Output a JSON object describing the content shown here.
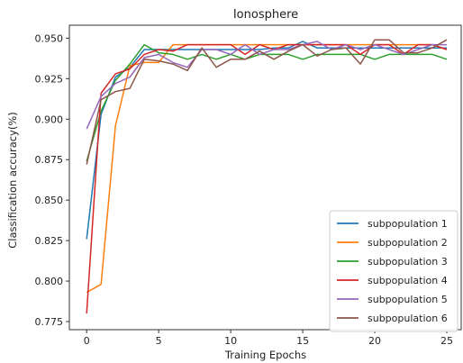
{
  "chart_data": {
    "type": "line",
    "title": "Ionosphere",
    "xlabel": "Training Epochs",
    "ylabel": "Classification accuracy(%)",
    "xlim": [
      -1.2,
      26.0
    ],
    "ylim": [
      0.77,
      0.958
    ],
    "xticks": [
      0,
      5,
      10,
      15,
      20,
      25
    ],
    "yticks": [
      0.775,
      0.8,
      0.825,
      0.85,
      0.875,
      0.9,
      0.925,
      0.95
    ],
    "ytick_labels": [
      "0.775",
      "0.800",
      "0.825",
      "0.850",
      "0.875",
      "0.900",
      "0.925",
      "0.950"
    ],
    "xtick_labels": [
      "0",
      "5",
      "10",
      "15",
      "20",
      "25"
    ],
    "grid": false,
    "legend_position": "lower-right",
    "x": [
      0,
      1,
      2,
      3,
      4,
      5,
      6,
      7,
      8,
      9,
      10,
      11,
      12,
      13,
      14,
      15,
      16,
      17,
      18,
      19,
      20,
      21,
      22,
      23,
      24,
      25
    ],
    "series": [
      {
        "name": "subpopulation 1",
        "color": "#1f77b4",
        "values": [
          0.826,
          0.903,
          0.926,
          0.932,
          0.943,
          0.943,
          0.943,
          0.943,
          0.943,
          0.943,
          0.943,
          0.943,
          0.943,
          0.944,
          0.944,
          0.948,
          0.944,
          0.944,
          0.944,
          0.944,
          0.944,
          0.944,
          0.944,
          0.944,
          0.944,
          0.944
        ]
      },
      {
        "name": "subpopulation 2",
        "color": "#ff7f0e",
        "values": [
          0.793,
          0.798,
          0.896,
          0.933,
          0.935,
          0.935,
          0.946,
          0.946,
          0.946,
          0.946,
          0.946,
          0.946,
          0.946,
          0.946,
          0.946,
          0.946,
          0.946,
          0.946,
          0.946,
          0.946,
          0.946,
          0.946,
          0.946,
          0.946,
          0.946,
          0.943
        ]
      },
      {
        "name": "subpopulation 3",
        "color": "#2ca02c",
        "values": [
          0.874,
          0.905,
          0.924,
          0.934,
          0.946,
          0.941,
          0.94,
          0.937,
          0.94,
          0.937,
          0.94,
          0.937,
          0.94,
          0.94,
          0.94,
          0.937,
          0.94,
          0.94,
          0.94,
          0.94,
          0.937,
          0.94,
          0.94,
          0.94,
          0.94,
          0.937
        ]
      },
      {
        "name": "subpopulation 4",
        "color": "#d62728",
        "values": [
          0.78,
          0.916,
          0.928,
          0.931,
          0.94,
          0.943,
          0.942,
          0.946,
          0.946,
          0.946,
          0.946,
          0.94,
          0.946,
          0.943,
          0.946,
          0.946,
          0.946,
          0.946,
          0.946,
          0.94,
          0.946,
          0.946,
          0.94,
          0.946,
          0.946,
          0.943
        ]
      },
      {
        "name": "subpopulation 5",
        "color": "#9467bd",
        "values": [
          0.894,
          0.914,
          0.922,
          0.926,
          0.938,
          0.94,
          0.935,
          0.932,
          0.943,
          0.943,
          0.94,
          0.946,
          0.94,
          0.943,
          0.943,
          0.946,
          0.948,
          0.943,
          0.946,
          0.943,
          0.946,
          0.943,
          0.94,
          0.943,
          0.946,
          0.946
        ]
      },
      {
        "name": "subpopulation 6",
        "color": "#8c564b",
        "values": [
          0.872,
          0.912,
          0.917,
          0.919,
          0.937,
          0.936,
          0.934,
          0.93,
          0.944,
          0.932,
          0.937,
          0.937,
          0.942,
          0.937,
          0.942,
          0.946,
          0.939,
          0.943,
          0.944,
          0.934,
          0.949,
          0.949,
          0.941,
          0.941,
          0.944,
          0.949
        ]
      }
    ]
  }
}
